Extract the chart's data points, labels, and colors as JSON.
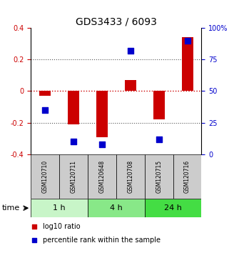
{
  "title": "GDS3433 / 6093",
  "samples": [
    "GSM120710",
    "GSM120711",
    "GSM120648",
    "GSM120708",
    "GSM120715",
    "GSM120716"
  ],
  "log10_ratio": [
    -0.03,
    -0.21,
    -0.29,
    0.07,
    -0.18,
    0.34
  ],
  "percentile_rank": [
    35,
    10,
    8,
    82,
    12,
    90
  ],
  "time_groups": [
    {
      "label": "1 h",
      "start": 0,
      "end": 2,
      "color": "#c8f5c8"
    },
    {
      "label": "4 h",
      "start": 2,
      "end": 4,
      "color": "#88e888"
    },
    {
      "label": "24 h",
      "start": 4,
      "end": 6,
      "color": "#44dd44"
    }
  ],
  "bar_color": "#cc0000",
  "dot_color": "#0000cc",
  "left_ylim": [
    -0.4,
    0.4
  ],
  "right_ylim": [
    0,
    100
  ],
  "left_yticks": [
    -0.4,
    -0.2,
    0.0,
    0.2,
    0.4
  ],
  "right_yticks": [
    0,
    25,
    50,
    75,
    100
  ],
  "right_yticklabels": [
    "0",
    "25",
    "50",
    "75",
    "100%"
  ],
  "dotted_line_values": [
    -0.2,
    0.2
  ],
  "dotted_line_color": "#555555",
  "zero_line_color": "#cc0000",
  "bg_color": "#ffffff",
  "sample_box_color": "#cccccc",
  "bar_width": 0.4,
  "dot_size": 28,
  "title_fontsize": 10,
  "tick_fontsize": 7,
  "sample_fontsize": 5.5,
  "time_fontsize": 8,
  "legend_fontsize": 7
}
